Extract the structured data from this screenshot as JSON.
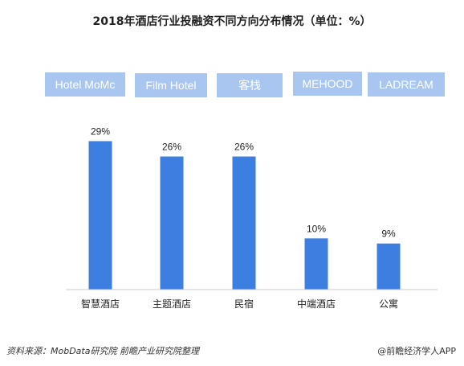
{
  "title": "2018年酒店行业投融资不同方向分布情况（单位：%）",
  "source": "资料来源：MobData研究院  前瞻产业研究院整理",
  "credit": "@前瞻经济学人APP",
  "colors": {
    "bar": "#3d7fe0",
    "brand_box": "#a9c6f0",
    "axis": "#cccccc"
  },
  "brands": [
    "Hotel MoMc",
    "Film Hotel",
    "客栈",
    "MEHOOD",
    "LADREAM"
  ],
  "chart_data": {
    "type": "bar",
    "title": "2018年酒店行业投融资不同方向分布情况（单位：%）",
    "categories": [
      "智慧酒店",
      "主题酒店",
      "民宿",
      "中端酒店",
      "公寓"
    ],
    "values": [
      29,
      26,
      26,
      10,
      9
    ],
    "value_labels": [
      "29%",
      "26%",
      "26%",
      "10%",
      "9%"
    ],
    "unit": "%",
    "ylim": [
      0,
      33
    ],
    "grid": false,
    "legend": "none"
  }
}
